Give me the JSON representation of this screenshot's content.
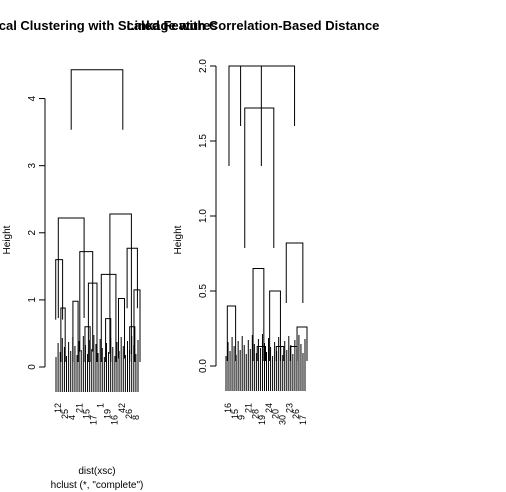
{
  "chart_data": [
    {
      "type": "dendrogram",
      "title": "Hierarchical Clustering with Scaled Features",
      "ylabel": "Height",
      "xlabel": "dist(xsc)",
      "sub": "hclust (*, \"complete\")",
      "ylim": [
        0,
        4.5
      ],
      "yticks": [
        0,
        1,
        2,
        3,
        4
      ],
      "merges": [
        {
          "x": [
            0.2,
            0.8
          ],
          "h": 4.43
        },
        {
          "x": [
            0.05,
            0.35
          ],
          "h": 2.22
        },
        {
          "x": [
            0.65,
            0.9
          ],
          "h": 2.28
        },
        {
          "x": [
            0.02,
            0.1
          ],
          "h": 1.6
        },
        {
          "x": [
            0.3,
            0.45
          ],
          "h": 1.72
        },
        {
          "x": [
            0.55,
            0.72
          ],
          "h": 1.38
        },
        {
          "x": [
            0.85,
            0.97
          ],
          "h": 1.77
        },
        {
          "x": [
            0.4,
            0.5
          ],
          "h": 1.25
        },
        {
          "x": [
            0.93,
            1.0
          ],
          "h": 1.15
        },
        {
          "x": [
            0.75,
            0.82
          ],
          "h": 1.02
        },
        {
          "x": [
            0.22,
            0.28
          ],
          "h": 0.98
        },
        {
          "x": [
            0.08,
            0.13
          ],
          "h": 0.88
        },
        {
          "x": [
            0.6,
            0.66
          ],
          "h": 0.72
        },
        {
          "x": [
            0.36,
            0.42
          ],
          "h": 0.6
        },
        {
          "x": [
            0.88,
            0.94
          ],
          "h": 0.6
        }
      ],
      "leaf_labels": [
        "12",
        "25",
        "4",
        "21",
        "15",
        "17",
        "1",
        "19",
        "16",
        "42",
        "26",
        "8"
      ]
    },
    {
      "type": "dendrogram",
      "title": "Linkage with Correlation-Based Distance",
      "ylabel": "Height",
      "ylim": [
        0,
        2.0
      ],
      "yticks": [
        0.0,
        0.5,
        1.0,
        1.5,
        2.0
      ],
      "merges": [
        {
          "x": [
            0.2,
            0.85
          ],
          "h": 2.0
        },
        {
          "x": [
            0.06,
            0.45
          ],
          "h": 2.0
        },
        {
          "x": [
            0.25,
            0.6
          ],
          "h": 1.72
        },
        {
          "x": [
            0.75,
            0.95
          ],
          "h": 0.82
        },
        {
          "x": [
            0.35,
            0.48
          ],
          "h": 0.65
        },
        {
          "x": [
            0.55,
            0.68
          ],
          "h": 0.5
        },
        {
          "x": [
            0.04,
            0.14
          ],
          "h": 0.4
        },
        {
          "x": [
            0.88,
            1.0
          ],
          "h": 0.26
        },
        {
          "x": [
            0.63,
            0.72
          ],
          "h": 0.13
        },
        {
          "x": [
            0.8,
            0.88
          ],
          "h": 0.13
        },
        {
          "x": [
            0.4,
            0.5
          ],
          "h": 0.13
        }
      ],
      "leaf_labels": [
        "16",
        "15",
        "9",
        "21",
        "28",
        "19",
        "24",
        "20",
        "30",
        "23",
        "26",
        "17"
      ]
    }
  ]
}
